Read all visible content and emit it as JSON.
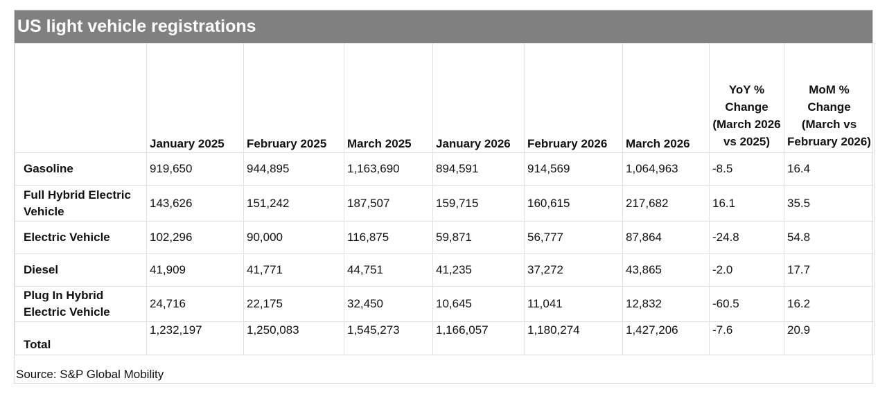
{
  "title": "US light vehicle registrations",
  "columns": [
    "",
    "January 2025",
    "February 2025",
    "March 2025",
    "January 2026",
    "February 2026",
    "March 2026",
    "YoY % Change (March 2026 vs 2025)",
    "MoM % Change (March vs February 2026)"
  ],
  "rows": [
    {
      "label": "Gasoline",
      "values": [
        "919,650",
        "944,895",
        "1,163,690",
        "894,591",
        "914,569",
        "1,064,963",
        "-8.5",
        "16.4"
      ]
    },
    {
      "label": "Full Hybrid Electric Vehicle",
      "values": [
        "143,626",
        "151,242",
        "187,507",
        "159,715",
        "160,615",
        "217,682",
        "16.1",
        "35.5"
      ]
    },
    {
      "label": "Electric Vehicle",
      "values": [
        "102,296",
        "90,000",
        "116,875",
        "59,871",
        "56,777",
        "87,864",
        "-24.8",
        "54.8"
      ]
    },
    {
      "label": "Diesel",
      "values": [
        "41,909",
        "41,771",
        "44,751",
        "41,235",
        "37,272",
        "43,865",
        "-2.0",
        "17.7"
      ]
    },
    {
      "label": "Plug In Hybrid Electric Vehicle",
      "values": [
        "24,716",
        "22,175",
        "32,450",
        "10,645",
        "11,041",
        "12,832",
        "-60.5",
        "16.2"
      ]
    },
    {
      "label": "Total",
      "values": [
        "1,232,197",
        "1,250,083",
        "1,545,273",
        "1,166,057",
        "1,180,274",
        "1,427,206",
        "-7.6",
        "20.9"
      ]
    }
  ],
  "source": "Source: S&P Global Mobility"
}
